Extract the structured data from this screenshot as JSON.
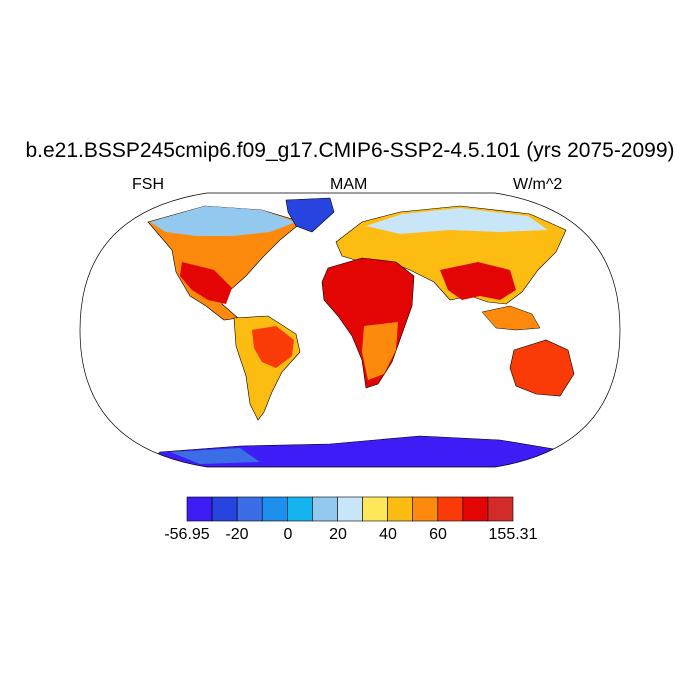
{
  "title": "b.e21.BSSP245cmip6.f09_g17.CMIP6-SSP2-4.5.101 (yrs 2075-2099)",
  "left_label": "FSH",
  "center_label": "MAM",
  "right_label": "W/m^2",
  "colorbar": {
    "colors": [
      "#3d1cf5",
      "#2743e0",
      "#3b6ee6",
      "#1d8fef",
      "#14b4ef",
      "#93c9ee",
      "#c8e6f7",
      "#fee85a",
      "#fdbc12",
      "#fd8a0c",
      "#fa3a07",
      "#e30504",
      "#d12c2a"
    ],
    "tick_labels": [
      "-56.95",
      "-20",
      "0",
      "20",
      "40",
      "60",
      "155.31"
    ]
  },
  "colors": {
    "ocean": "#ffffff",
    "coast": "#000000"
  }
}
